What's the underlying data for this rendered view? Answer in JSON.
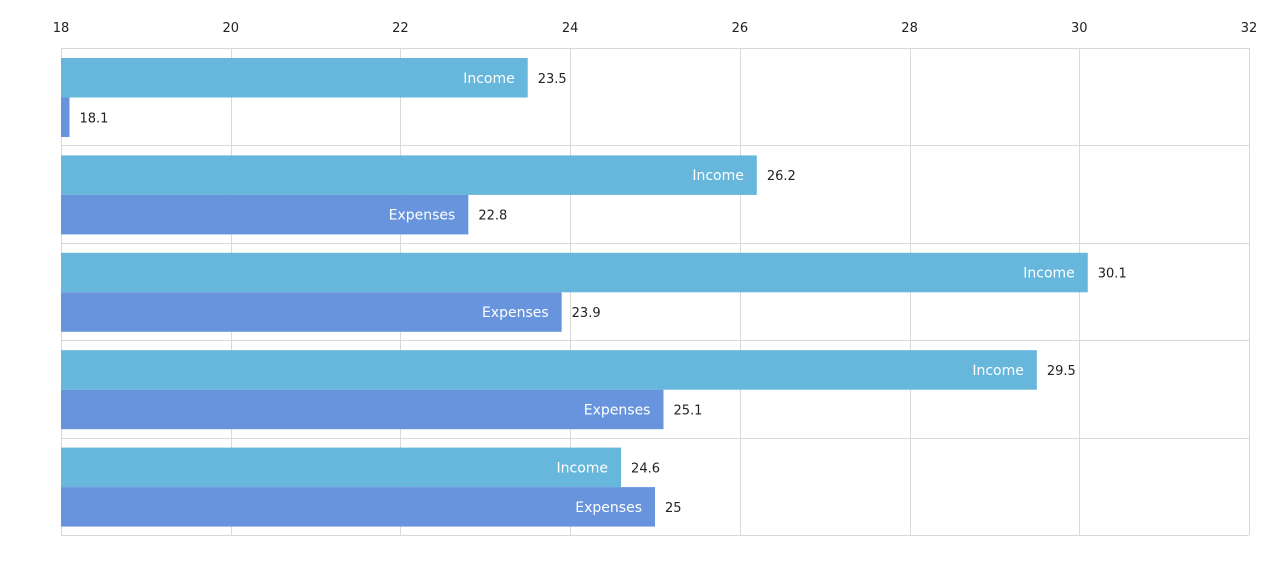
{
  "chart_data": {
    "type": "bar",
    "orientation": "horizontal",
    "title": "",
    "xlabel": "",
    "ylabel": "",
    "xlim": [
      18,
      32
    ],
    "x_ticks": [
      "18",
      "20",
      "22",
      "24",
      "26",
      "28",
      "30",
      "32"
    ],
    "x_axis_position": "top",
    "grid": true,
    "legend": "none",
    "categories": [
      "",
      "",
      "",
      "",
      ""
    ],
    "series": [
      {
        "name": "Income",
        "color": "#67b7dc",
        "values": [
          23.5,
          26.2,
          30.1,
          29.5,
          24.6
        ],
        "labels": [
          "Income",
          "Income",
          "Income",
          "Income",
          "Income"
        ],
        "value_labels": [
          "23.5",
          "26.2",
          "30.1",
          "29.5",
          "24.6"
        ]
      },
      {
        "name": "Expenses",
        "color": "#6794dc",
        "values": [
          18.1,
          22.8,
          23.9,
          25.1,
          25
        ],
        "labels": [
          "",
          "Expenses",
          "Expenses",
          "Expenses",
          "Expenses"
        ],
        "value_labels": [
          "18.1",
          "22.8",
          "23.9",
          "25.1",
          "25"
        ]
      }
    ]
  }
}
